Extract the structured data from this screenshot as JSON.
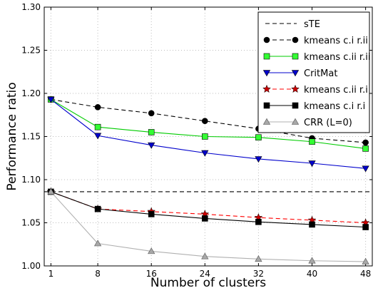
{
  "chart_data": {
    "type": "line",
    "xlabel": "Number of clusters",
    "ylabel": "Performance ratio",
    "x": [
      1,
      8,
      16,
      24,
      32,
      40,
      48
    ],
    "xticks": [
      "1",
      "8",
      "16",
      "24",
      "32",
      "40",
      "48"
    ],
    "xlim": [
      0,
      49
    ],
    "ylim": [
      1.0,
      1.3
    ],
    "yticks": [
      "1.00",
      "1.05",
      "1.10",
      "1.15",
      "1.20",
      "1.25",
      "1.30"
    ],
    "grid": true,
    "legend_position": "top-right",
    "series": [
      {
        "name": "sTE",
        "style": "dashed",
        "color": "#000000",
        "marker": "none",
        "values": [
          1.086,
          1.086,
          1.086,
          1.086,
          1.086,
          1.086,
          1.086
        ]
      },
      {
        "name": "kmeans c.i r.ii",
        "style": "dashed",
        "color": "#000000",
        "marker": "circle",
        "marker_color": "#000000",
        "values": [
          1.193,
          1.184,
          1.177,
          1.168,
          1.159,
          1.148,
          1.143
        ]
      },
      {
        "name": "kmeans c.ii r.ii",
        "style": "solid",
        "color": "#00cc00",
        "marker": "square",
        "marker_color": "#33ff33",
        "values": [
          1.193,
          1.161,
          1.155,
          1.15,
          1.149,
          1.144,
          1.136
        ]
      },
      {
        "name": "CritMat",
        "style": "solid",
        "color": "#0000cc",
        "marker": "triangle-down",
        "marker_color": "#0000cc",
        "values": [
          1.193,
          1.151,
          1.14,
          1.131,
          1.124,
          1.119,
          1.113
        ]
      },
      {
        "name": "kmeans c.ii r.i",
        "style": "dashed",
        "color": "#ff0000",
        "marker": "star",
        "marker_color": "#cc0000",
        "values": [
          1.086,
          1.066,
          1.063,
          1.06,
          1.056,
          1.053,
          1.05
        ]
      },
      {
        "name": "kmeans c.i r.i",
        "style": "solid",
        "color": "#000000",
        "marker": "square",
        "marker_color": "#000000",
        "values": [
          1.086,
          1.066,
          1.06,
          1.055,
          1.051,
          1.048,
          1.045
        ]
      },
      {
        "name": "CRR (L=0)",
        "style": "solid",
        "color": "#b0b0b0",
        "marker": "triangle-up",
        "marker_color": "#a8a8a8",
        "values": [
          1.086,
          1.026,
          1.017,
          1.011,
          1.008,
          1.006,
          1.005
        ]
      }
    ]
  }
}
